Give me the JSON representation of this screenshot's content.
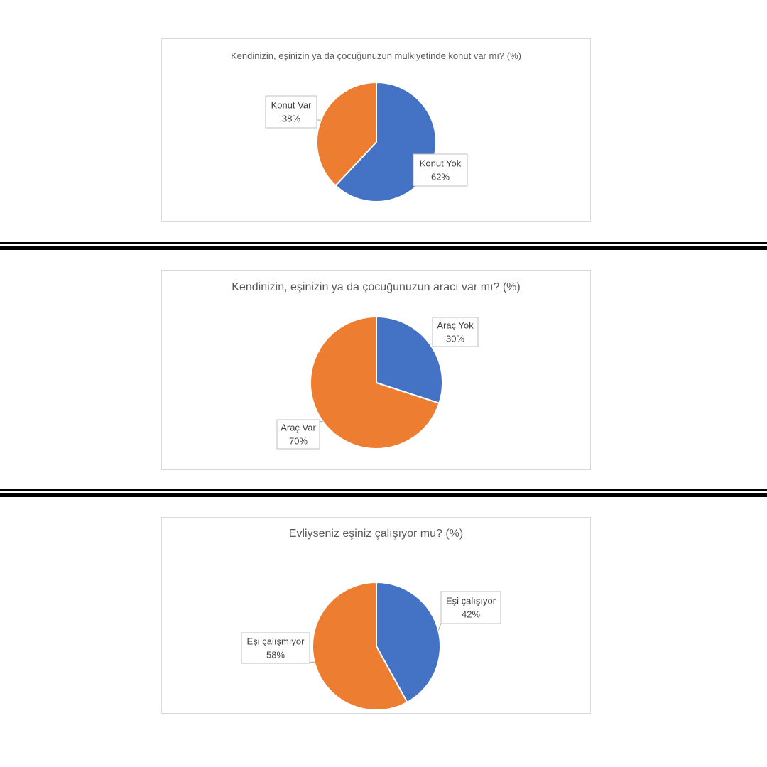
{
  "colors": {
    "series_blue": "#4472C4",
    "series_orange": "#ED7D31",
    "frame_border": "#d9d9d9"
  },
  "chart_data": [
    {
      "type": "pie",
      "title": "Kendinizin, eşinizin ya da çocuğunuzun mülkiyetinde konut var mı? (%)",
      "slices": [
        {
          "label": "Konut Yok",
          "value": 62,
          "value_label": "62%",
          "color": "#4472C4"
        },
        {
          "label": "Konut Var",
          "value": 38,
          "value_label": "38%",
          "color": "#ED7D31"
        }
      ],
      "legend": "none",
      "data_labels": "callout"
    },
    {
      "type": "pie",
      "title": "Kendinizin, eşinizin ya da çocuğunuzun aracı var mı? (%)",
      "slices": [
        {
          "label": "Araç Yok",
          "value": 30,
          "value_label": "30%",
          "color": "#4472C4"
        },
        {
          "label": "Araç Var",
          "value": 70,
          "value_label": "70%",
          "color": "#ED7D31"
        }
      ],
      "legend": "none",
      "data_labels": "callout"
    },
    {
      "type": "pie",
      "title": "Evliyseniz eşiniz çalışıyor mu? (%)",
      "slices": [
        {
          "label": "Eşi çalışıyor",
          "value": 42,
          "value_label": "42%",
          "color": "#4472C4"
        },
        {
          "label": "Eşi çalışmıyor",
          "value": 58,
          "value_label": "58%",
          "color": "#ED7D31"
        }
      ],
      "legend": "none",
      "data_labels": "callout"
    }
  ]
}
